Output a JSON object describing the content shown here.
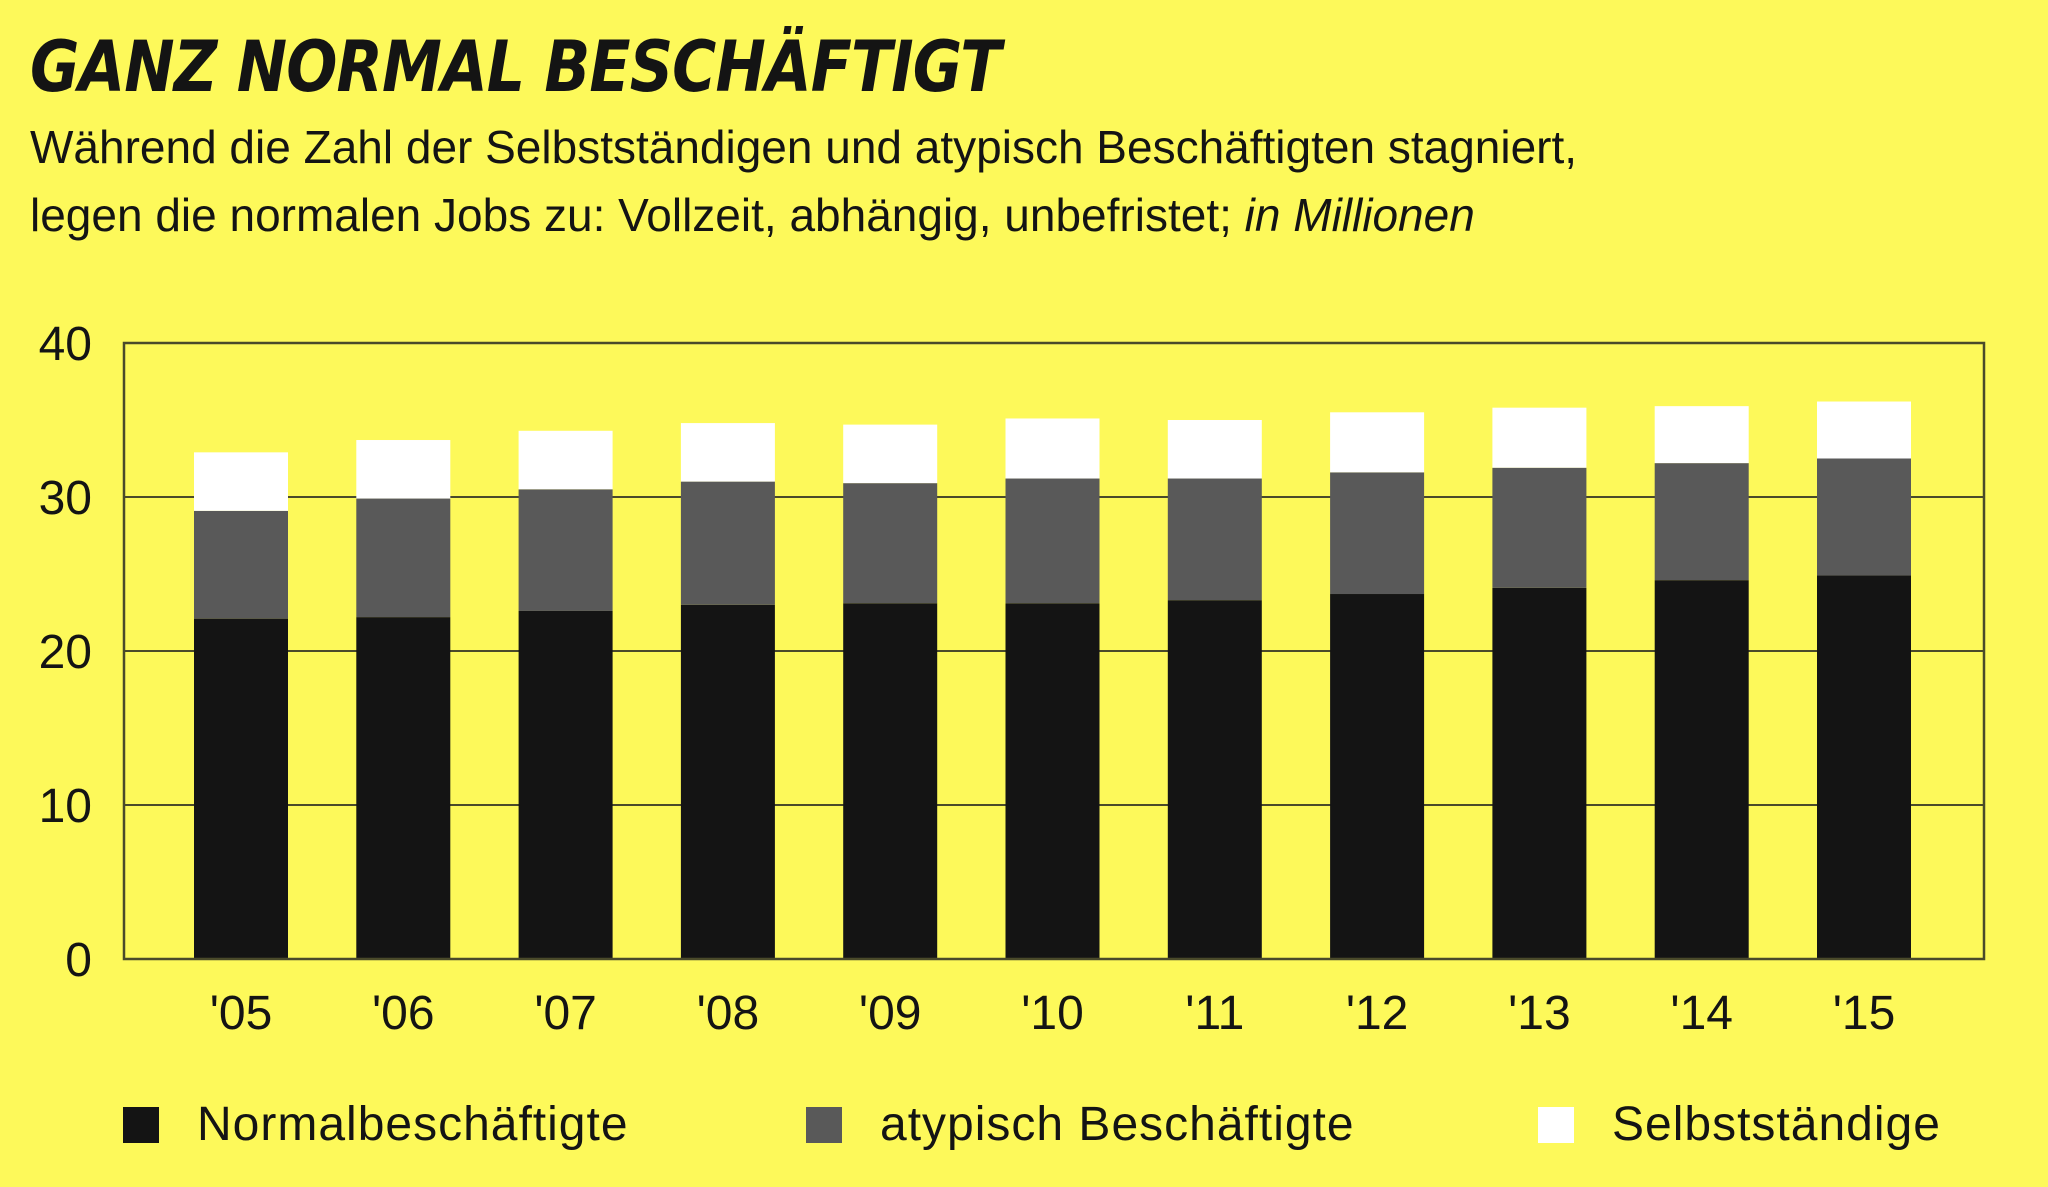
{
  "header": {
    "title": "GANZ NORMAL BESCHÄFTIGT",
    "subtitle_line1": "Während die Zahl der Selbstständigen und atypisch Beschäftigten stagniert,",
    "subtitle_line2": "legen die normalen Jobs zu: Vollzeit, abhängig, unbefristet;",
    "subtitle_unit": "in Millionen"
  },
  "colors": {
    "background": "#fdf95a",
    "normal": "#141414",
    "atypisch": "#595959",
    "selbst": "#ffffff",
    "grid": "#4a4a2a"
  },
  "chart_data": {
    "type": "bar",
    "stacked": true,
    "title": "GANZ NORMAL BESCHÄFTIGT",
    "categories": [
      "'05",
      "'06",
      "'07",
      "'08",
      "'09",
      "'10",
      "'11",
      "'12",
      "'13",
      "'14",
      "'15"
    ],
    "series": [
      {
        "name": "Normalbeschäftigte",
        "values": [
          22.1,
          22.2,
          22.6,
          23.0,
          23.1,
          23.1,
          23.3,
          23.7,
          24.1,
          24.6,
          24.9
        ]
      },
      {
        "name": "atypisch Beschäftigte",
        "values": [
          7.0,
          7.7,
          7.9,
          8.0,
          7.8,
          8.1,
          7.9,
          7.9,
          7.8,
          7.6,
          7.6
        ]
      },
      {
        "name": "Selbstständige",
        "values": [
          3.8,
          3.8,
          3.8,
          3.8,
          3.8,
          3.9,
          3.8,
          3.9,
          3.9,
          3.7,
          3.7
        ]
      }
    ],
    "yticks": [
      0,
      10,
      20,
      30,
      40
    ],
    "ylim": [
      0,
      40
    ],
    "grid": true,
    "legend": "bottom"
  }
}
